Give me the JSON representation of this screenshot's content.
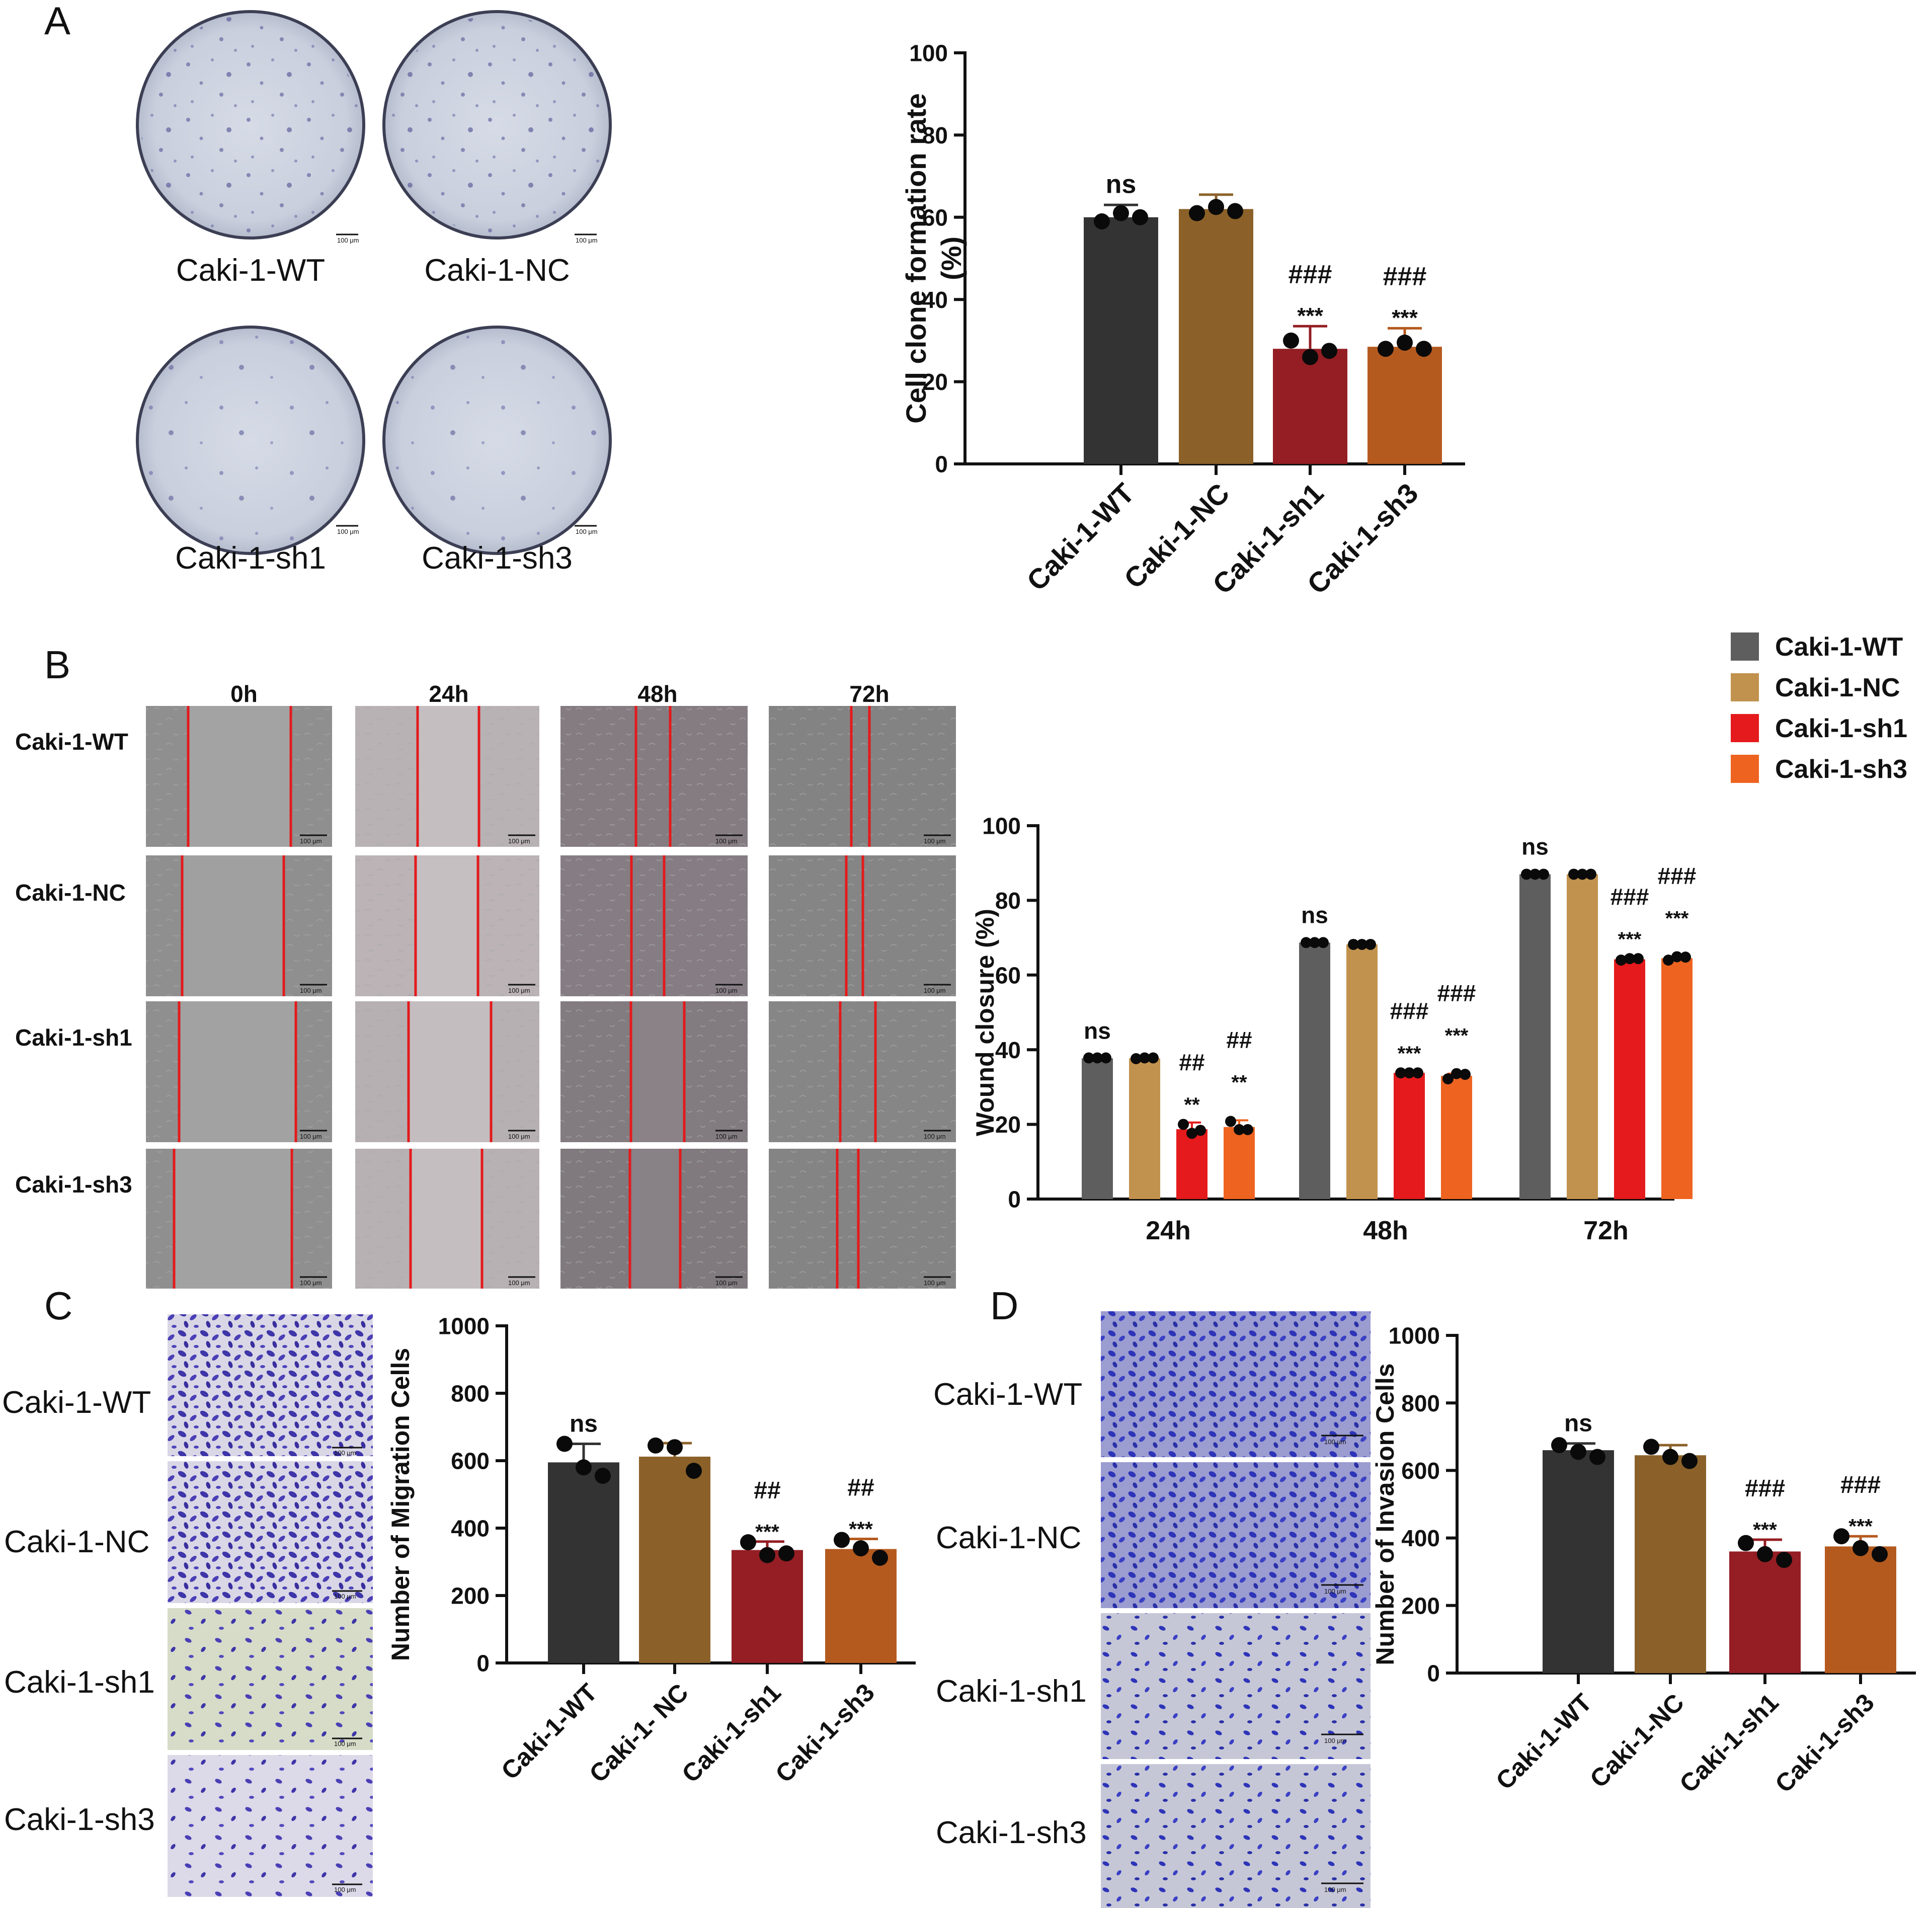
{
  "panel_labels": {
    "A": "A",
    "B": "B",
    "C": "C",
    "D": "D"
  },
  "scale_bar_text": "100 μm",
  "colors": {
    "wt": "#333333",
    "nc": "#8B6129",
    "sh1": "#941E23",
    "sh3": "#B55A1F",
    "b_wt": "#5E5E5E",
    "b_nc": "#C1924E",
    "b_sh1": "#E41A1C",
    "b_sh3": "#EE6320",
    "red_line": "#E31A1C"
  },
  "panelA": {
    "dish_captions": [
      "Caki-1-WT",
      "Caki-1-NC",
      "Caki-1-sh1",
      "Caki-1-sh3"
    ]
  },
  "panelB": {
    "time_headers": [
      "0h",
      "24h",
      "48h",
      "72h"
    ],
    "row_labels": [
      "Caki-1-WT",
      "Caki-1-NC",
      "Caki-1-sh1",
      "Caki-1-sh3"
    ],
    "legend": [
      "Caki-1-WT",
      "Caki-1-NC",
      "Caki-1-sh1",
      "Caki-1-sh3"
    ]
  },
  "panelC": {
    "image_labels": [
      "Caki-1-WT",
      "Caki-1-NC",
      "Caki-1-sh1",
      "Caki-1-sh3"
    ]
  },
  "panelD": {
    "image_labels": [
      "Caki-1-WT",
      "Caki-1-NC",
      "Caki-1-sh1",
      "Caki-1-sh3"
    ]
  },
  "chart_data": [
    {
      "id": "A",
      "type": "bar",
      "title": "",
      "xlabel": "",
      "ylabel": [
        "Cell clone formation rate",
        "(%)"
      ],
      "ylim": [
        0,
        100
      ],
      "yticks": [
        "0",
        "20",
        "40",
        "60",
        "80",
        "100"
      ],
      "categories": [
        "Caki-1-WT",
        "Caki-1-NC",
        "Caki-1-sh1",
        "Caki-1-sh3"
      ],
      "values": [
        60,
        62,
        28,
        28.5
      ],
      "errors": [
        3,
        3.5,
        5.5,
        4.5
      ],
      "points": [
        [
          59,
          61,
          60
        ],
        [
          61,
          62.5,
          61.5
        ],
        [
          30,
          26,
          27.5
        ],
        [
          28,
          29.5,
          28
        ]
      ],
      "annotations": [
        [
          "ns"
        ],
        [],
        [
          "***",
          "###"
        ],
        [
          "***",
          "###"
        ]
      ]
    },
    {
      "id": "B",
      "type": "bar",
      "title": "",
      "xlabel": "",
      "ylabel": "Wound closure (%)",
      "ylim": [
        0,
        100
      ],
      "yticks": [
        "0",
        "20",
        "40",
        "60",
        "80",
        "100"
      ],
      "categories": [
        "24h",
        "48h",
        "72h"
      ],
      "series": [
        {
          "name": "Caki-1-WT",
          "values": [
            37.7,
            68.7,
            87.0
          ],
          "errors": [
            0.4,
            0.4,
            0.4
          ]
        },
        {
          "name": "Caki-1-NC",
          "values": [
            37.7,
            68.2,
            87.0
          ],
          "errors": [
            0.4,
            0.4,
            0.4
          ]
        },
        {
          "name": "Caki-1-sh1",
          "values": [
            18.7,
            33.8,
            64.2
          ],
          "errors": [
            1.8,
            0.4,
            0.6
          ]
        },
        {
          "name": "Caki-1-sh3",
          "values": [
            19.3,
            33.0,
            64.5
          ],
          "errors": [
            1.8,
            0.6,
            0.5
          ]
        }
      ],
      "points": [
        [
          [
            37.8,
            37.8,
            37.8
          ],
          [
            68.7,
            68.7,
            68.7
          ],
          [
            87.0,
            87.0,
            87.0
          ]
        ],
        [
          [
            37.6,
            37.8,
            37.8
          ],
          [
            68.2,
            68.2,
            68.2
          ],
          [
            87.0,
            87.0,
            87.0
          ]
        ],
        [
          [
            20.0,
            17.6,
            18.4
          ],
          [
            33.8,
            33.8,
            33.8
          ],
          [
            64.0,
            64.4,
            64.4
          ]
        ],
        [
          [
            20.8,
            18.6,
            18.6
          ],
          [
            32.2,
            33.6,
            33.4
          ],
          [
            64.0,
            64.9,
            64.8
          ]
        ]
      ],
      "annotations": [
        [
          [
            "ns"
          ],
          [],
          [
            "**",
            "##"
          ],
          [
            "**",
            "##"
          ]
        ],
        [
          [
            "ns"
          ],
          [],
          [
            "***",
            "###"
          ],
          [
            "***",
            "###"
          ]
        ],
        [
          [
            "ns"
          ],
          [],
          [
            "***",
            "###"
          ],
          [
            "***",
            "###"
          ]
        ]
      ],
      "legend_position": "top-right"
    },
    {
      "id": "C",
      "type": "bar",
      "title": "",
      "xlabel": "",
      "ylabel": "Number of Migration Cells",
      "ylim": [
        0,
        1000
      ],
      "yticks": [
        "0",
        "200",
        "400",
        "600",
        "800",
        "1000"
      ],
      "categories": [
        "Caki-1-WT",
        "Caki-1- NC",
        "Caki-1-sh1",
        "Caki-1-sh3"
      ],
      "values": [
        595,
        612,
        335,
        338
      ],
      "errors": [
        55,
        40,
        25,
        30
      ],
      "points": [
        [
          650,
          580,
          555
        ],
        [
          645,
          640,
          570
        ],
        [
          358,
          320,
          325
        ],
        [
          365,
          340,
          312
        ]
      ],
      "annotations": [
        [
          "ns"
        ],
        [],
        [
          "***",
          "##"
        ],
        [
          "***",
          "##"
        ]
      ]
    },
    {
      "id": "D",
      "type": "bar",
      "title": "",
      "xlabel": "",
      "ylabel": "Number of Invasion Cells",
      "ylim": [
        0,
        1000
      ],
      "yticks": [
        "0",
        "200",
        "400",
        "600",
        "800",
        "1000"
      ],
      "categories": [
        "Caki-1-WT",
        "Caki-1-NC",
        "Caki-1-sh1",
        "Caki-1-sh3"
      ],
      "values": [
        660,
        645,
        360,
        375
      ],
      "errors": [
        20,
        30,
        35,
        30
      ],
      "points": [
        [
          675,
          655,
          640
        ],
        [
          670,
          640,
          628
        ],
        [
          385,
          352,
          335
        ],
        [
          405,
          370,
          352
        ]
      ],
      "annotations": [
        [
          "ns"
        ],
        [],
        [
          "***",
          "###"
        ],
        [
          "***",
          "###"
        ]
      ]
    }
  ]
}
